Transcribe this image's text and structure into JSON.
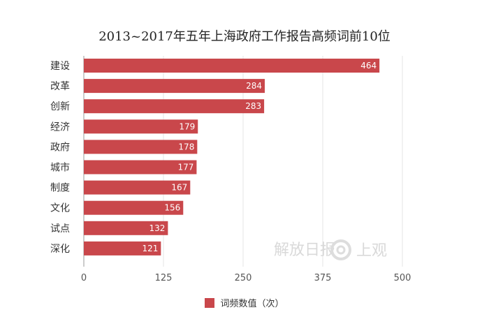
{
  "colors": {
    "bar": "#c9474b",
    "grid": "#e6e6e6",
    "axis": "#999999"
  },
  "watermark": {
    "text_1": "解放日报",
    "text_2": "上观"
  },
  "chart_data": {
    "type": "bar",
    "orientation": "horizontal",
    "title": "2013~2017年五年上海政府工作报告高频词前10位",
    "categories": [
      "建设",
      "改革",
      "创新",
      "经济",
      "政府",
      "城市",
      "制度",
      "文化",
      "试点",
      "深化"
    ],
    "series": [
      {
        "name": "词频数值（次）",
        "values": [
          464,
          284,
          283,
          179,
          178,
          177,
          167,
          156,
          132,
          121
        ]
      }
    ],
    "xlim": [
      0,
      500
    ],
    "xticks": [
      0,
      125,
      250,
      375,
      500
    ],
    "xlabel": "",
    "ylabel": "",
    "grid": true,
    "legend": "bottom-center"
  }
}
